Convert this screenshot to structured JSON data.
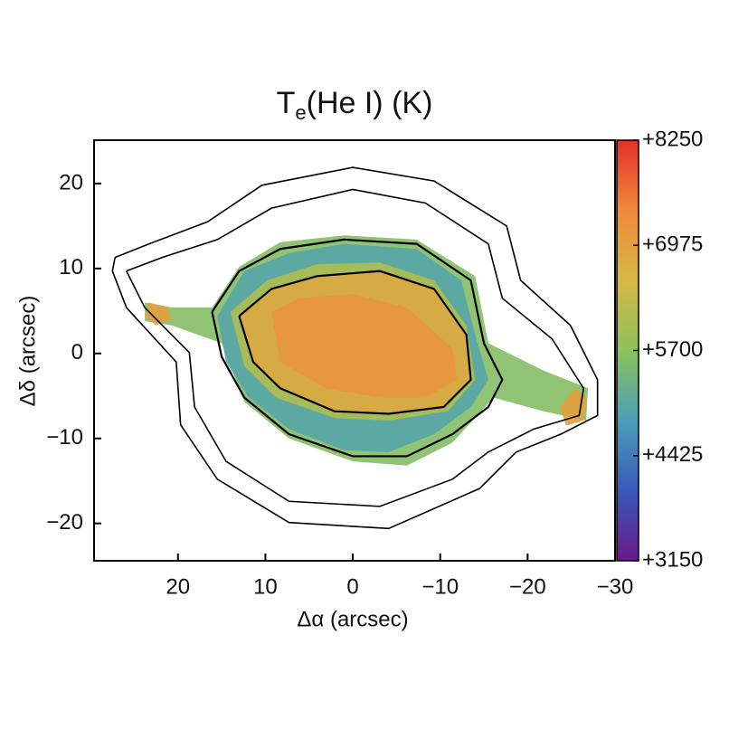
{
  "chart_data": {
    "type": "map",
    "title": [
      "T",
      "e",
      "(He I) (K)"
    ],
    "x_label": "Δα (arcsec)",
    "y_label": "Δδ (arcsec)",
    "xlim": [
      29.6,
      -30
    ],
    "ylim": [
      -24.4,
      25.1
    ],
    "xticks": [
      20,
      10,
      0,
      {
        "value": -10,
        "label": "−10"
      },
      {
        "value": -20,
        "label": "−20"
      },
      {
        "value": -30,
        "label": "−30"
      }
    ],
    "yticks": [
      20,
      10,
      0,
      {
        "value": -10,
        "label": "−10"
      },
      {
        "value": -20,
        "label": "−20"
      }
    ],
    "colorbar_lim": [
      3150,
      8250
    ],
    "colorbar_ticks": [
      {
        "value": 8250,
        "label": "+8250"
      },
      {
        "value": 6975,
        "label": "+6975"
      },
      {
        "value": 5700,
        "label": "+5700"
      },
      {
        "value": 4425,
        "label": "+4425"
      },
      {
        "value": 3150,
        "label": "+3150"
      }
    ],
    "colormap": [
      "#6a1a8a",
      "#3a58b8",
      "#4a9fb8",
      "#8cc25a",
      "#d6b844",
      "#ef8a3a",
      "#e3302a"
    ],
    "regions": [
      {
        "value": 5600,
        "x": [
          23.8,
          20.7,
          16.1,
          13.0,
          8.3,
          1.0,
          -7.3,
          -14.0,
          -15.5,
          -21.8,
          -26.9,
          -26.7,
          -21.8,
          -16.1,
          -11.4,
          -6.2,
          0,
          7.3,
          12.4,
          15.0,
          20.7,
          23.8
        ],
        "y": [
          6.0,
          5.4,
          5.4,
          10.2,
          13.1,
          13.9,
          13.4,
          9.1,
          1.2,
          -2.0,
          -4.1,
          -7.9,
          -6.8,
          -5.2,
          -10.5,
          -13.2,
          -12.7,
          -10.0,
          -5.7,
          1.2,
          3.3,
          3.8
        ]
      },
      {
        "value": 5000,
        "x": [
          15.5,
          12.4,
          7.3,
          1.0,
          -7.3,
          -12.4,
          -14.0,
          -15.5,
          -13.5,
          -9.3,
          -4.1,
          1.0,
          7.3,
          11.9,
          14.5
        ],
        "y": [
          4.4,
          9.7,
          11.8,
          12.9,
          12.3,
          8.6,
          2.2,
          -3.1,
          -6.3,
          -9.5,
          -11.6,
          -11.4,
          -8.9,
          -5.2,
          -1.0
        ]
      },
      {
        "value": 6100,
        "x": [
          14.0,
          9.8,
          4.1,
          -3.1,
          -9.3,
          -13.0,
          -14.0,
          -10.9,
          -4.1,
          2.1,
          8.8,
          12.4
        ],
        "y": [
          4.9,
          8.6,
          10.5,
          10.7,
          8.6,
          3.3,
          -3.1,
          -6.8,
          -7.9,
          -7.6,
          -5.2,
          -1.5
        ]
      },
      {
        "value": 6800,
        "x": [
          13.0,
          9.3,
          4.1,
          -3.1,
          -9.3,
          -13.0,
          -13.5,
          -10.4,
          -4.1,
          2.1,
          8.3,
          11.4
        ],
        "y": [
          4.4,
          7.6,
          9.1,
          9.7,
          7.6,
          2.2,
          -3.1,
          -6.3,
          -7.1,
          -6.8,
          -4.1,
          -1.0
        ]
      },
      {
        "value": 7200,
        "x": [
          9.3,
          6.2,
          0,
          -6.2,
          -11.4,
          -11.9,
          -8.3,
          -3.1,
          3.1,
          8.3
        ],
        "y": [
          4.9,
          6.5,
          7.0,
          5.4,
          0.6,
          -3.1,
          -5.2,
          -5.2,
          -4.1,
          -1.0
        ]
      },
      {
        "value": 7000,
        "x": [
          23.3,
          21.2,
          20.7,
          22.5,
          23.8
        ],
        "y": [
          6.0,
          5.4,
          4.1,
          3.3,
          4.4
        ]
      },
      {
        "value": 7000,
        "x": [
          -25.4,
          -26.7,
          -26.4,
          -24.4,
          -23.7
        ],
        "y": [
          -4.1,
          -5.2,
          -7.9,
          -8.5,
          -6.3
        ]
      }
    ],
    "contours": [
      {
        "x": [
          27.2,
          23.3,
          16.6,
          10.4,
          0,
          -9.3,
          -17.6,
          -19.2,
          -24.9,
          -28.0,
          -28.0,
          -23.8,
          -18.7,
          -14.5,
          -4.1,
          7.3,
          15.5,
          19.7,
          20.2,
          25.9,
          27.5,
          27.2
        ],
        "y": [
          11.3,
          12.9,
          15.5,
          19.8,
          21.9,
          20.3,
          15.0,
          8.6,
          3.3,
          -3.1,
          -7.3,
          -9.5,
          -11.6,
          -15.9,
          -20.6,
          -19.9,
          -14.8,
          -8.4,
          -1.0,
          5.4,
          9.7,
          11.3
        ]
      },
      {
        "x": [
          25.9,
          21.8,
          15.5,
          9.3,
          0,
          -8.3,
          -15.5,
          -17.1,
          -22.8,
          -26.4,
          -25.9,
          -20.7,
          -15.5,
          -11.4,
          -3.1,
          7.3,
          14.5,
          18.1,
          18.7,
          23.8,
          25.9
        ],
        "y": [
          9.7,
          11.3,
          13.4,
          17.1,
          19.3,
          17.7,
          12.9,
          6.5,
          1.7,
          -4.1,
          -7.3,
          -8.9,
          -11.6,
          -14.8,
          -18.0,
          -17.4,
          -12.7,
          -6.3,
          0.1,
          5.4,
          9.7
        ]
      },
      {
        "x": [
          16.1,
          13.0,
          8.3,
          1.0,
          -7.3,
          -13.5,
          -15.0,
          -17.1,
          -15.5,
          -11.4,
          -6.2,
          0,
          7.3,
          12.4,
          15.0,
          16.1
        ],
        "y": [
          4.9,
          9.7,
          12.3,
          13.4,
          12.9,
          8.6,
          1.2,
          -3.1,
          -6.3,
          -9.5,
          -12.1,
          -12.1,
          -9.5,
          -5.2,
          -0.4,
          4.9
        ]
      },
      {
        "x": [
          13.0,
          9.3,
          4.1,
          -3.1,
          -9.3,
          -13.0,
          -13.5,
          -10.4,
          -4.1,
          2.1,
          8.3,
          11.4,
          13.0
        ],
        "y": [
          4.4,
          7.6,
          9.1,
          9.7,
          7.6,
          2.2,
          -3.1,
          -6.3,
          -7.1,
          -6.8,
          -4.1,
          -1.0,
          4.4
        ]
      }
    ]
  }
}
